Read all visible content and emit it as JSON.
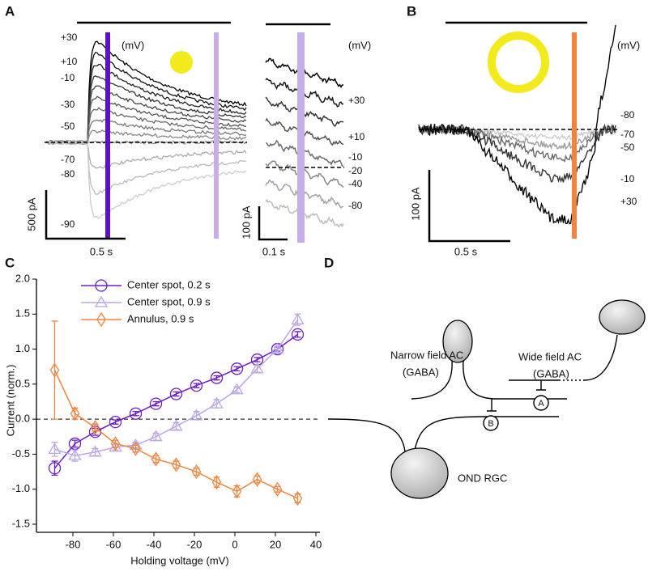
{
  "panel_a": {
    "label": "A",
    "unit": "(mV)",
    "voltages": [
      "+30",
      "+10",
      "-10",
      "-30",
      "-50",
      "-70",
      "-80",
      "-90"
    ],
    "scale_y": "500 pA",
    "scale_x": "0.5 s",
    "inset_unit": "(mV)",
    "inset_voltages": [
      "+30",
      "+10",
      "-10",
      "-20",
      "-40",
      "-80"
    ],
    "inset_scale_y": "100 pA",
    "inset_scale_x": "0.1 s"
  },
  "panel_b": {
    "label": "B",
    "unit": "(mV)",
    "voltages": [
      "-80",
      "-70",
      "-50",
      "-10",
      "+30"
    ],
    "scale_y": "100 pA",
    "scale_x": "0.5 s"
  },
  "chart_data": {
    "type": "line",
    "panel_label": "C",
    "x_label": "Holding voltage (mV)",
    "y_label": "Current (norm.)",
    "x": [
      -89,
      -79,
      -69,
      -59,
      -49,
      -39,
      -29,
      -19,
      -9,
      1,
      11,
      21,
      31
    ],
    "series": [
      {
        "name": "Center spot, 0.2 s",
        "color": "#6a1fc9",
        "marker": "circle",
        "values": [
          -0.7,
          -0.35,
          -0.18,
          -0.04,
          0.08,
          0.22,
          0.36,
          0.48,
          0.59,
          0.72,
          0.85,
          1.0,
          1.21
        ],
        "errors": [
          0.1,
          0.05,
          0.05,
          0.03,
          0.03,
          0.03,
          0.03,
          0.03,
          0.03,
          0.03,
          0.03,
          0.03,
          0.04
        ]
      },
      {
        "name": "Center spot, 0.9 s",
        "color": "#bca6e6",
        "marker": "triangle",
        "values": [
          -0.43,
          -0.52,
          -0.47,
          -0.4,
          -0.37,
          -0.25,
          -0.1,
          0.05,
          0.22,
          0.42,
          0.72,
          1.0,
          1.42
        ],
        "errors": [
          0.1,
          0.08,
          0.05,
          0.04,
          0.04,
          0.05,
          0.05,
          0.06,
          0.06,
          0.04,
          0.05,
          0.04,
          0.08
        ]
      },
      {
        "name": "Annulus, 0.9 s",
        "color": "#f0843f",
        "marker": "diamond",
        "values": [
          0.7,
          0.08,
          -0.12,
          -0.35,
          -0.42,
          -0.57,
          -0.65,
          -0.75,
          -0.9,
          -1.03,
          -0.86,
          -1.0,
          -1.13
        ],
        "errors": [
          0.7,
          0.08,
          0.05,
          0.05,
          0.05,
          0.05,
          0.05,
          0.05,
          0.07,
          0.08,
          0.05,
          0.04,
          0.06
        ]
      }
    ],
    "xlim": [
      -98,
      42
    ],
    "xticks": [
      -80,
      -60,
      -40,
      -20,
      0,
      20,
      40
    ],
    "ylim": [
      -1.5,
      2.0
    ],
    "yticks": [
      {
        "value": -1.5,
        "label": "-1.5"
      },
      {
        "value": -1.0,
        "label": "-1.0"
      },
      -0.5,
      {
        "value": 0.0,
        "label": "0.0"
      },
      0.5,
      {
        "value": 1.0,
        "label": "1.0"
      },
      1.5,
      {
        "value": 2.0,
        "label": "2.0"
      }
    ],
    "legend": "upper left",
    "zero_line": true
  },
  "panel_d": {
    "label": "D",
    "narrow_ac": "Narrow field AC",
    "narrow_ac_transmitter": "(GABA)",
    "wide_ac": "Wide field AC",
    "wide_ac_transmitter": "(GABA)",
    "rgc": "OND RGC",
    "synapse_a": "A",
    "synapse_b": "B"
  }
}
